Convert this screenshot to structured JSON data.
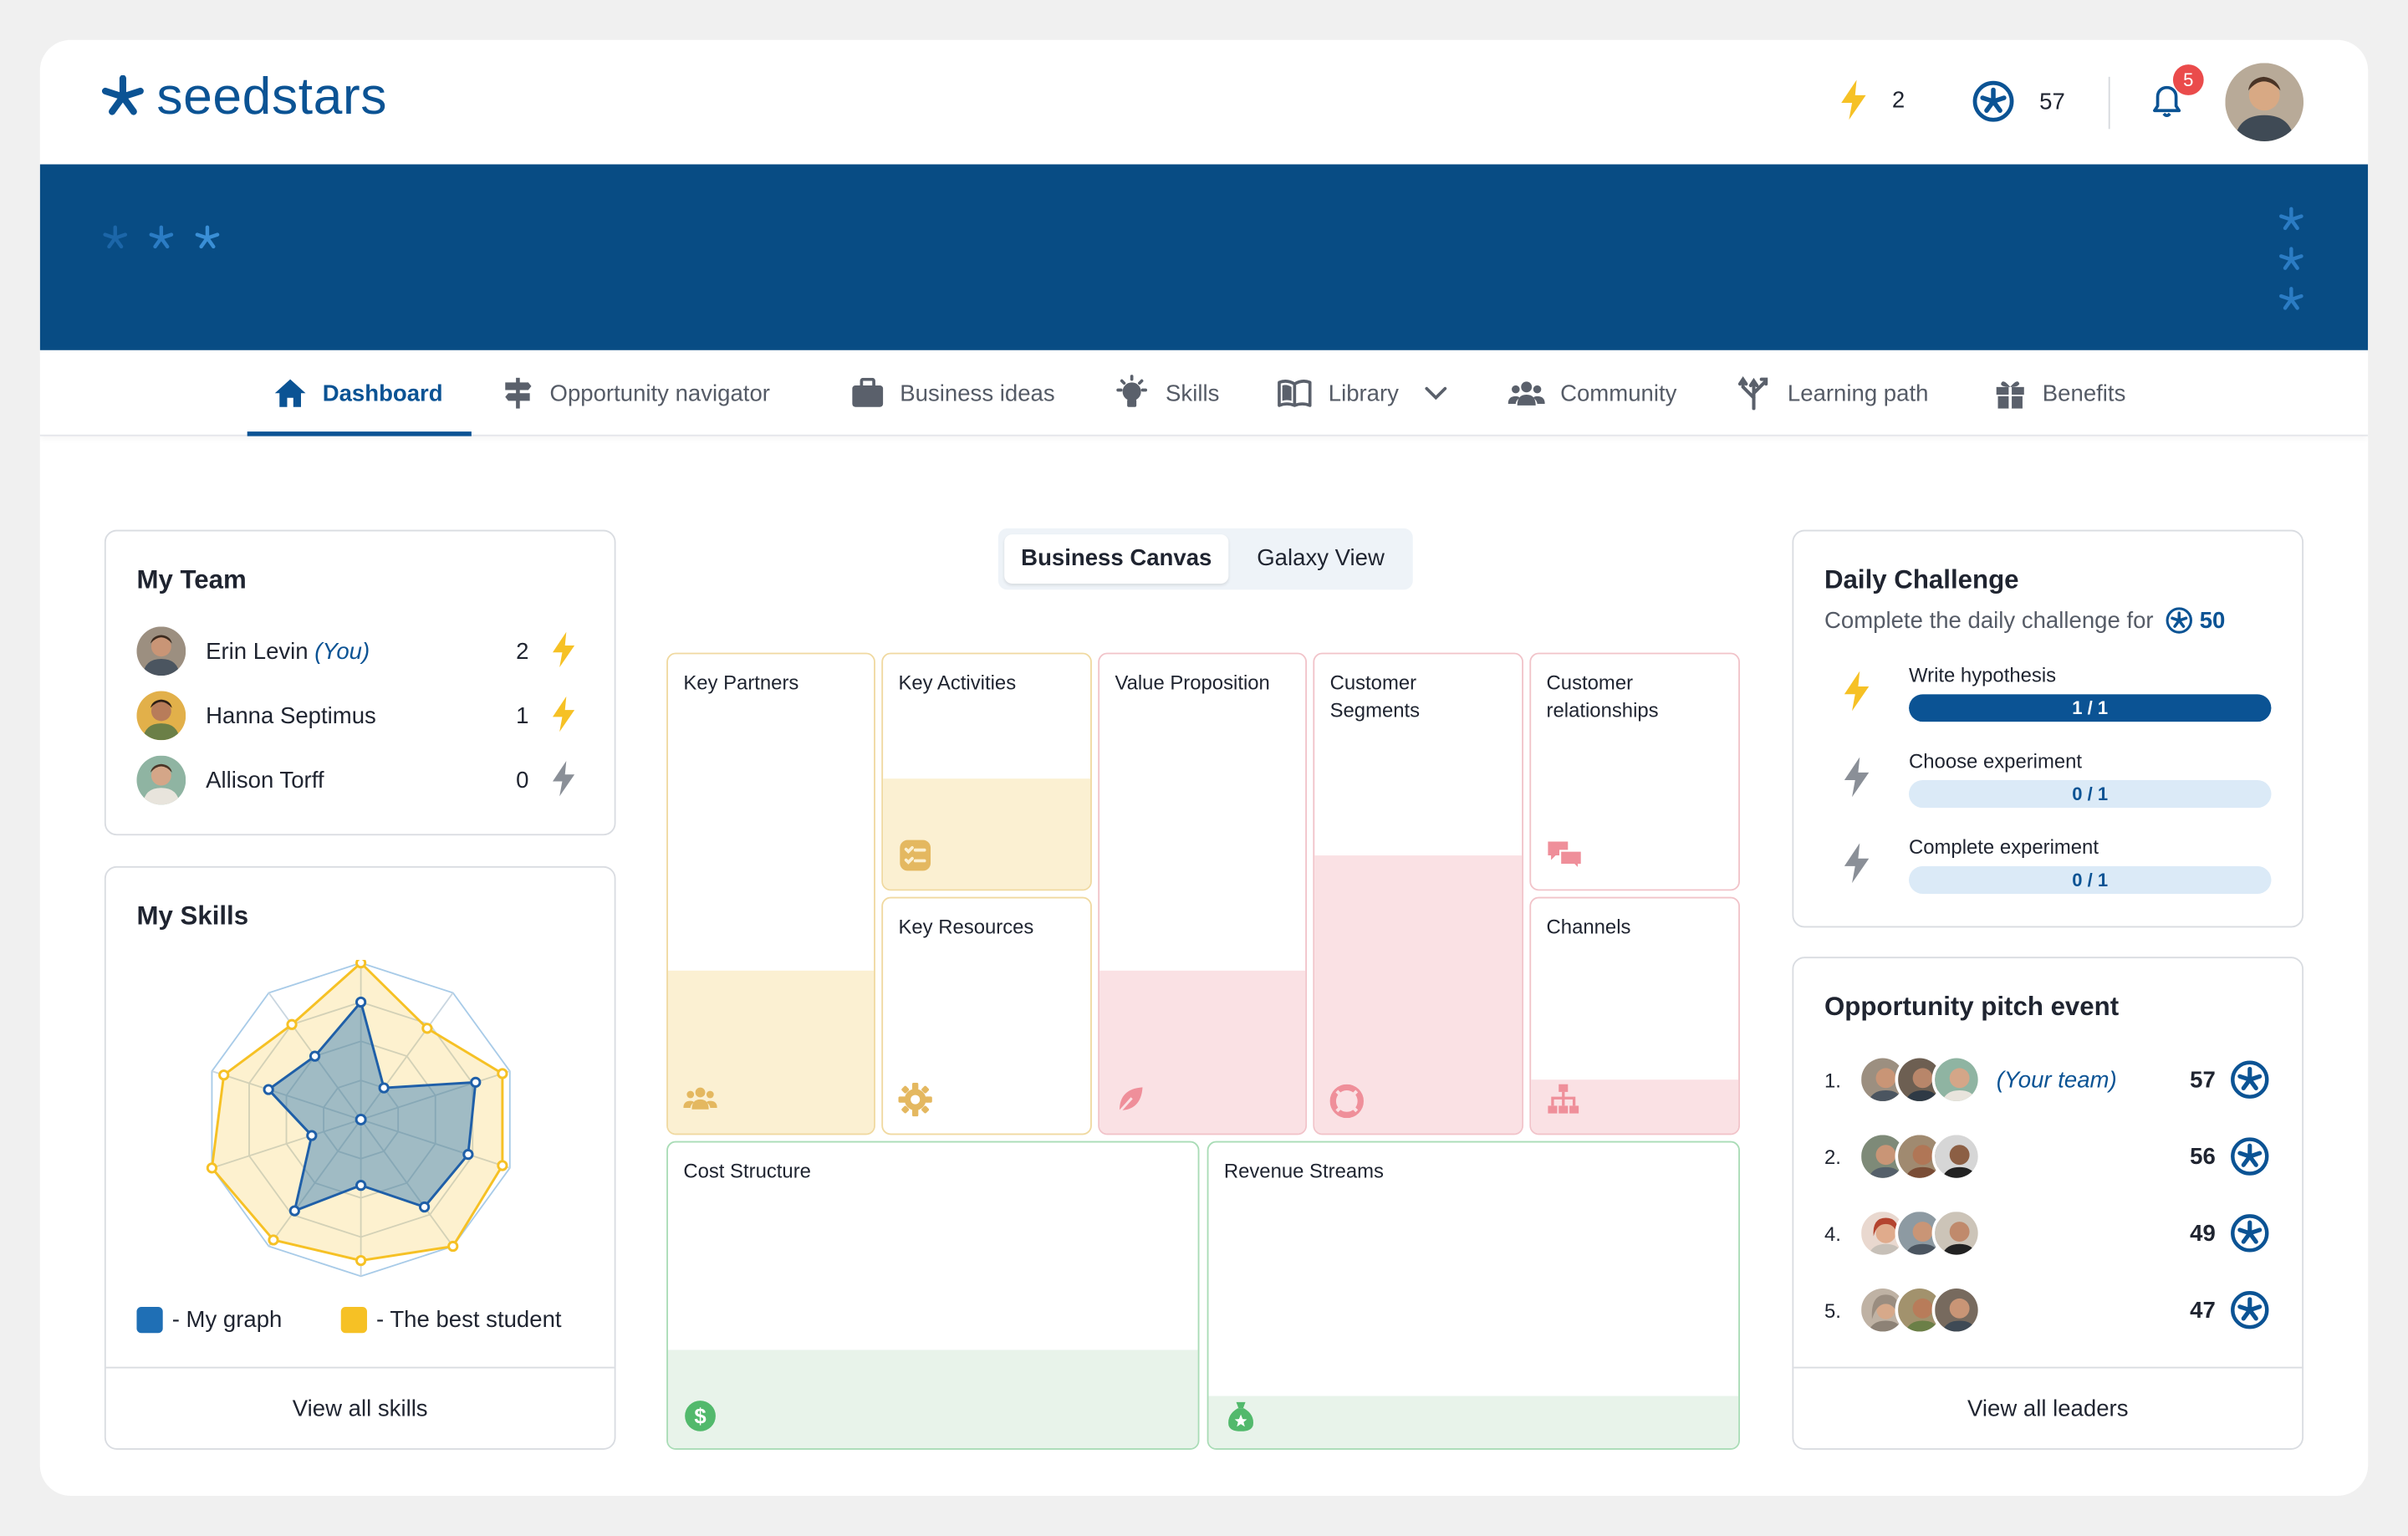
{
  "colors": {
    "brand": "#0b5394",
    "banner": "#084c84",
    "energy": "#f6c125",
    "my_graph": "#1f6fb5",
    "best_student": "#f6c125"
  },
  "header": {
    "logo_text": "seedstars",
    "energy_count": "2",
    "stars_count": "57",
    "notifications_count": "5",
    "icons": {
      "energy": "bolt-icon",
      "stars": "seedstars-star-icon",
      "bell": "bell-icon"
    }
  },
  "nav": {
    "items": [
      {
        "label": "Dashboard",
        "icon": "home-icon"
      },
      {
        "label": "Opportunity navigator",
        "icon": "signpost-icon"
      },
      {
        "label": "Business ideas",
        "icon": "briefcase-icon"
      },
      {
        "label": "Skills",
        "icon": "lightbulb-icon"
      },
      {
        "label": "Library",
        "icon": "book-icon"
      },
      {
        "label": "Community",
        "icon": "people-icon"
      },
      {
        "label": "Learning path",
        "icon": "paths-icon"
      },
      {
        "label": "Benefits",
        "icon": "gift-icon"
      }
    ]
  },
  "team": {
    "title": "My Team",
    "members": [
      {
        "name": "Erin Levin",
        "suffix": "(You)",
        "energy": "2"
      },
      {
        "name": "Hanna Septimus",
        "suffix": "",
        "energy": "1"
      },
      {
        "name": "Allison Torff",
        "suffix": "",
        "energy": "0"
      }
    ]
  },
  "skills": {
    "title": "My Skills",
    "legend": [
      "- My graph",
      "- The best student"
    ],
    "footer": "View all skills",
    "chart_data": {
      "type": "radar",
      "axes": 10,
      "rmax": 1,
      "series": [
        {
          "values": [
            0.75,
            0.25,
            0.77,
            0.72,
            0.69,
            0.42,
            0.72,
            0.33,
            0.62,
            0.5
          ]
        },
        {
          "values": [
            1.0,
            0.72,
            0.95,
            0.95,
            1.0,
            0.9,
            0.95,
            1.0,
            0.92,
            0.75
          ]
        }
      ]
    }
  },
  "canvas": {
    "toggle": {
      "active": "Business Canvas",
      "inactive": "Galaxy View"
    },
    "blocks": {
      "key_partners": "Key Partners",
      "key_activities": "Key Activities",
      "value_proposition": "Value Proposition",
      "customer_segments": "Customer\nSegments",
      "customer_relationships": "Customer\nrelationships",
      "key_resources": "Key Resources",
      "channels": "Channels",
      "cost_structure": "Cost Structure",
      "revenue_streams": "Revenue Streams"
    },
    "fill_fractions": {
      "key_partners": 0.34,
      "key_activities": 0.47,
      "value_proposition": 0.34,
      "customer_segments": 0.58,
      "customer_relationships": 0,
      "key_resources": 0,
      "channels": 0.23,
      "cost_structure": 0.32,
      "revenue_streams": 0.17
    }
  },
  "daily": {
    "title": "Daily Challenge",
    "subtitle": "Complete the daily challenge for",
    "reward": "50",
    "tasks": [
      {
        "name": "Write hypothesis",
        "progress": "1 / 1",
        "fraction": 1
      },
      {
        "name": "Choose  experiment",
        "progress": "0 / 1",
        "fraction": 0
      },
      {
        "name": "Complete experiment",
        "progress": "0 / 1",
        "fraction": 0
      }
    ]
  },
  "pitch": {
    "title": "Opportunity pitch event",
    "rows": [
      {
        "rank": "1.",
        "team": "(Your team)",
        "score": "57"
      },
      {
        "rank": "2.",
        "team": "",
        "score": "56"
      },
      {
        "rank": "4.",
        "team": "",
        "score": "49"
      },
      {
        "rank": "5.",
        "team": "",
        "score": "47"
      }
    ],
    "footer": "View all leaders"
  }
}
